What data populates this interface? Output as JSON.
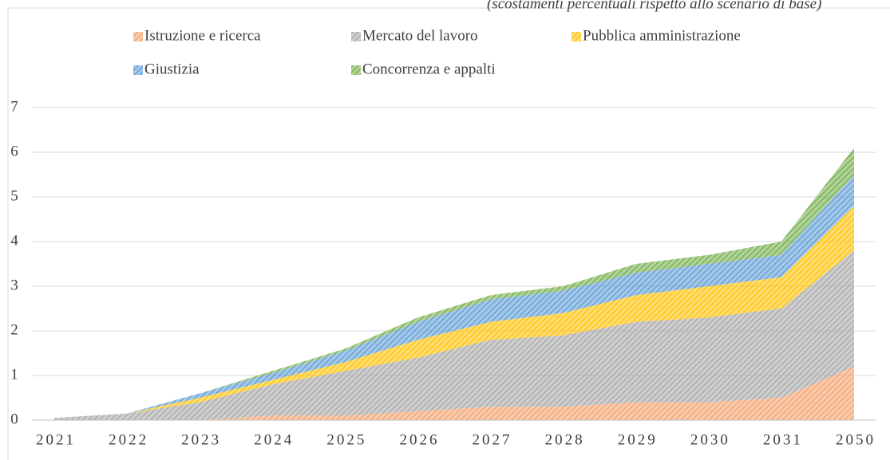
{
  "chart_data": {
    "type": "stacked_area",
    "subtitle": "(scostamenti percentuali rispetto allo scenario di base)",
    "categories": [
      "2021",
      "2022",
      "2023",
      "2024",
      "2025",
      "2026",
      "2027",
      "2028",
      "2029",
      "2030",
      "2031",
      "2050"
    ],
    "series": [
      {
        "name": "Istruzione e ricerca",
        "color": "#f4a06a",
        "values": [
          0,
          0,
          0,
          0.1,
          0.1,
          0.2,
          0.3,
          0.3,
          0.4,
          0.4,
          0.5,
          1.2
        ]
      },
      {
        "name": "Mercato del lavoro",
        "color": "#a6a6a6",
        "values": [
          0.05,
          0.15,
          0.4,
          0.7,
          1.0,
          1.2,
          1.5,
          1.6,
          1.8,
          1.9,
          2.0,
          2.6
        ]
      },
      {
        "name": "Pubblica amministrazione",
        "color": "#ffc000",
        "values": [
          0,
          0,
          0.1,
          0.1,
          0.2,
          0.4,
          0.4,
          0.5,
          0.6,
          0.7,
          0.7,
          1.0
        ]
      },
      {
        "name": "Giustizia",
        "color": "#5b9bd5",
        "values": [
          0,
          0,
          0.1,
          0.15,
          0.25,
          0.4,
          0.5,
          0.5,
          0.5,
          0.5,
          0.5,
          0.7
        ]
      },
      {
        "name": "Concorrenza e appalti",
        "color": "#70ad47",
        "values": [
          0,
          0,
          0,
          0.05,
          0.05,
          0.1,
          0.1,
          0.1,
          0.2,
          0.2,
          0.3,
          0.6
        ]
      }
    ],
    "ylim": [
      0,
      7
    ],
    "yticks": [
      0,
      1,
      2,
      3,
      4,
      5,
      6,
      7
    ],
    "grid": true,
    "legend": "top",
    "hatched": true
  }
}
